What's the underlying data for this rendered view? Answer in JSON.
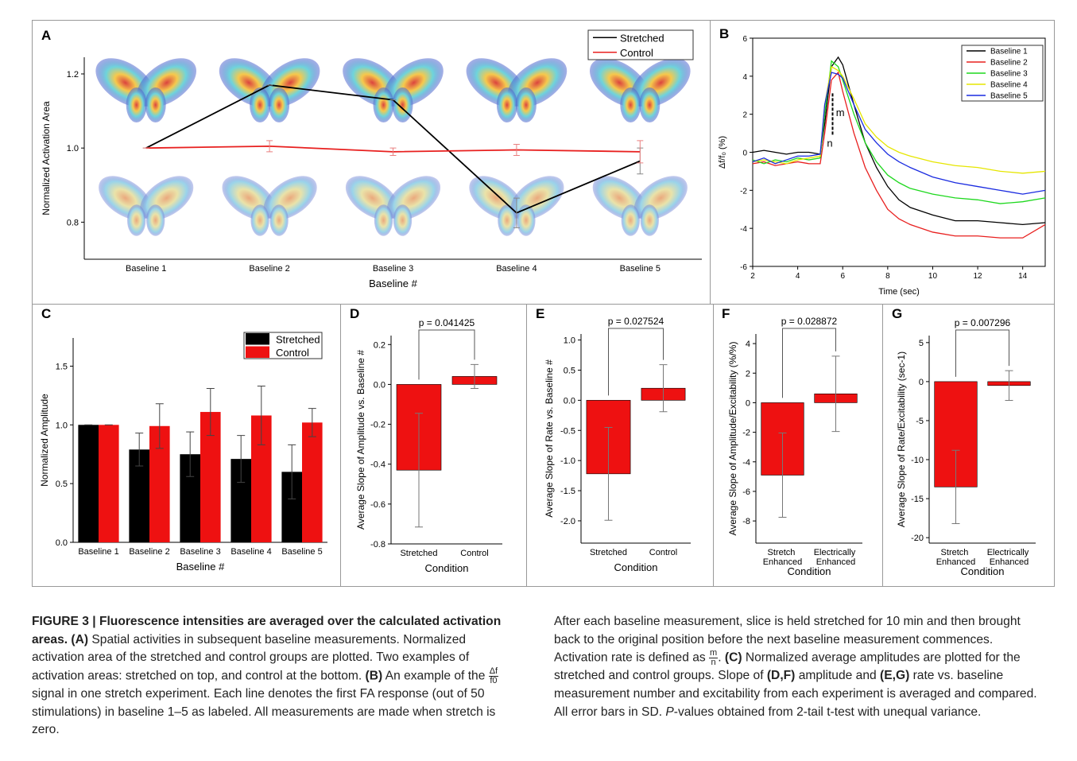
{
  "chart_data": [
    {
      "type": "line",
      "panel": "A",
      "categories": [
        "Baseline 1",
        "Baseline 2",
        "Baseline 3",
        "Baseline 4",
        "Baseline 5"
      ],
      "xlabel": "Baseline #",
      "ylabel": "Normalized Activation Area",
      "ylim": [
        0.7,
        1.245
      ],
      "yticks": [
        0.8,
        {
          "value": 1,
          "label": "1.0"
        },
        1.2
      ],
      "legend": "upper right",
      "series": [
        {
          "name": "Stretched",
          "color": "#000000",
          "values": [
            1.0,
            1.17,
            1.13,
            0.825,
            0.965
          ],
          "errors": [
            0,
            0,
            0,
            0.04,
            0.035
          ]
        },
        {
          "name": "Control",
          "color": "#e8201f",
          "values": [
            1.0,
            1.005,
            0.99,
            0.995,
            0.99
          ],
          "errors": [
            0,
            0.015,
            0.01,
            0.015,
            0.03
          ]
        }
      ]
    },
    {
      "type": "line",
      "panel": "B",
      "xlabel": "Time (sec)",
      "ylabel": "Δf/f₀ (%)",
      "x": [
        2,
        2.5,
        3,
        3.5,
        4,
        4.5,
        5,
        5.2,
        5.5,
        5.8,
        6,
        6.5,
        7,
        7.5,
        8,
        8.5,
        9,
        10,
        11,
        12,
        13,
        14,
        15
      ],
      "xlim": [
        2,
        15
      ],
      "xticks": [
        2,
        4,
        6,
        8,
        10,
        12,
        14
      ],
      "ylim": [
        -6,
        6
      ],
      "yticks": [
        -6,
        -4,
        -2,
        0,
        2,
        4,
        6
      ],
      "legend": "upper right",
      "annotations": [
        "m",
        "n"
      ],
      "series": [
        {
          "name": "Baseline 1",
          "color": "#000000",
          "values": [
            0,
            0.1,
            0,
            -0.1,
            0,
            0,
            -0.1,
            1.5,
            4.5,
            5,
            4.6,
            2.5,
            0.5,
            -0.8,
            -1.8,
            -2.5,
            -2.9,
            -3.3,
            -3.6,
            -3.6,
            -3.7,
            -3.8,
            -3.7
          ]
        },
        {
          "name": "Baseline 2",
          "color": "#e8201f",
          "values": [
            -0.6,
            -0.5,
            -0.7,
            -0.6,
            -0.5,
            -0.6,
            -0.6,
            1,
            3.8,
            4.2,
            3.2,
            1,
            -0.8,
            -2,
            -3,
            -3.5,
            -3.8,
            -4.2,
            -4.4,
            -4.4,
            -4.5,
            -4.5,
            -3.8
          ]
        },
        {
          "name": "Baseline 3",
          "color": "#1ed81e",
          "values": [
            -0.4,
            -0.6,
            -0.4,
            -0.5,
            -0.3,
            -0.4,
            -0.3,
            2,
            4.8,
            4.5,
            3.8,
            2,
            0.5,
            -0.5,
            -1.2,
            -1.6,
            -1.9,
            -2.2,
            -2.4,
            -2.5,
            -2.7,
            -2.6,
            -2.4
          ]
        },
        {
          "name": "Baseline 4",
          "color": "#e6e600",
          "values": [
            -0.5,
            -0.4,
            -0.5,
            -0.6,
            -0.4,
            -0.3,
            -0.2,
            2.5,
            4.5,
            4.3,
            4,
            2.8,
            1.5,
            0.8,
            0.3,
            0,
            -0.2,
            -0.5,
            -0.7,
            -0.8,
            -1,
            -1.1,
            -1
          ]
        },
        {
          "name": "Baseline 5",
          "color": "#1a2be0",
          "values": [
            -0.5,
            -0.3,
            -0.6,
            -0.4,
            -0.2,
            -0.2,
            -0.1,
            2.5,
            4.2,
            4.1,
            3.9,
            2.5,
            1.2,
            0.5,
            -0.1,
            -0.5,
            -0.8,
            -1.3,
            -1.6,
            -1.8,
            -2,
            -2.2,
            -2
          ]
        }
      ]
    },
    {
      "type": "bar",
      "panel": "C",
      "categories": [
        "Baseline 1",
        "Baseline 2",
        "Baseline 3",
        "Baseline 4",
        "Baseline 5"
      ],
      "xlabel": "Baseline #",
      "ylabel": "Normalized Amplitude",
      "ylim": [
        0,
        1.74
      ],
      "yticks": [
        {
          "value": 0,
          "label": "0.0"
        },
        0.5,
        {
          "value": 1,
          "label": "1.0"
        },
        1.5
      ],
      "legend": "upper right",
      "series": [
        {
          "name": "Stretched",
          "color": "#000000",
          "values": [
            1.0,
            0.79,
            0.75,
            0.71,
            0.6
          ],
          "errors": [
            0,
            0.14,
            0.19,
            0.2,
            0.23
          ]
        },
        {
          "name": "Control",
          "color": "#ee1111",
          "values": [
            1.0,
            0.99,
            1.11,
            1.08,
            1.02
          ],
          "errors": [
            0,
            0.19,
            0.2,
            0.25,
            0.12
          ]
        }
      ]
    },
    {
      "type": "bar",
      "panel": "D",
      "categories": [
        "Stretched",
        "Control"
      ],
      "xlabel": "Condition",
      "ylabel": "Average Slope of Amplitude vs. Baseline #",
      "ylim": [
        -0.8,
        0.245
      ],
      "yticks": [
        -0.8,
        -0.6,
        -0.4,
        -0.2,
        {
          "value": 0,
          "label": "0.0"
        },
        0.2
      ],
      "values": [
        -0.43,
        0.04
      ],
      "errors": [
        0.285,
        0.06
      ],
      "color": "#ee1111",
      "annotation": "p = 0.041425"
    },
    {
      "type": "bar",
      "panel": "E",
      "categories": [
        "Stretched",
        "Control"
      ],
      "xlabel": "Condition",
      "ylabel": "Average Slope of Rate vs. Baseline #",
      "ylim": [
        -2.37,
        1.1
      ],
      "yticks": [
        {
          "value": -2,
          "label": "-2.0"
        },
        -1.5,
        {
          "value": -1,
          "label": "-1.0"
        },
        -0.5,
        {
          "value": 0,
          "label": "0.0"
        },
        0.5,
        {
          "value": 1,
          "label": "1.0"
        }
      ],
      "values": [
        -1.22,
        0.2
      ],
      "errors": [
        0.77,
        0.39
      ],
      "color": "#ee1111",
      "annotation": "p = 0.027524"
    },
    {
      "type": "bar",
      "panel": "F",
      "categories": [
        "Stretch Enhanced",
        "Electrically Enhanced"
      ],
      "xlabel": "Condition",
      "ylabel": "Average Slope of Amplitude/Excitability (%/%)",
      "ylim": [
        -9.5,
        4.65
      ],
      "yticks": [
        -8,
        -6,
        -4,
        -2,
        0,
        2,
        4
      ],
      "values": [
        -4.9,
        0.6
      ],
      "errors": [
        2.85,
        2.55
      ],
      "color": "#ee1111",
      "annotation": "p = 0.028872"
    },
    {
      "type": "bar",
      "panel": "G",
      "categories": [
        "Stretch Enhanced",
        "Electrically Enhanced"
      ],
      "xlabel": "Condition",
      "ylabel": "Average Slope of Rate/Excitability (sec-1)",
      "ylim": [
        -20.7,
        5.9
      ],
      "yticks": [
        -20,
        -15,
        -10,
        -5,
        0,
        5
      ],
      "values": [
        -13.5,
        -0.5
      ],
      "errors": [
        4.7,
        1.9
      ],
      "color": "#ee1111",
      "annotation": "p = 0.007296"
    }
  ],
  "caption": {
    "columns": [
      {
        "runs": [
          {
            "text": "FIGURE 3 | Fluorescence intensities are averaged over the calculated activation areas.",
            "style": "bold"
          },
          {
            "text": " (A)",
            "style": "bold"
          },
          {
            "text": " Spatial activities in subsequent baseline measurements. Normalized activation area of the stretched and control groups are plotted. Two examples of activation areas: stretched on top, and control at the bottom. "
          },
          {
            "text": "(B)",
            "style": "bold"
          },
          {
            "text": " An example of the "
          },
          {
            "num": "Δf",
            "den": "f0"
          },
          {
            "text": " signal in one stretch experiment. Each line denotes the first FA response (out of 50 stimulations) in baseline 1–5 as labeled. All measurements are made when stretch is zero."
          }
        ]
      },
      {
        "runs": [
          {
            "text": "After each baseline measurement, slice is held stretched for 10 min and then brought back to the original position before the next baseline measurement commences. Activation rate is defined as "
          },
          {
            "num": "m",
            "den": "n"
          },
          {
            "text": ". "
          },
          {
            "text": "(C)",
            "style": "bold"
          },
          {
            "text": " Normalized average amplitudes are plotted for the stretched and control groups. Slope of "
          },
          {
            "text": "(D,F)",
            "style": "bold"
          },
          {
            "text": " amplitude and "
          },
          {
            "text": "(E,G)",
            "style": "bold"
          },
          {
            "text": " rate vs. baseline measurement number and excitability from each experiment is averaged and compared. All error bars in SD. "
          },
          {
            "text": "P",
            "style": "italic"
          },
          {
            "text": "-values obtained from 2-tail t-test with unequal variance."
          }
        ]
      }
    ]
  }
}
